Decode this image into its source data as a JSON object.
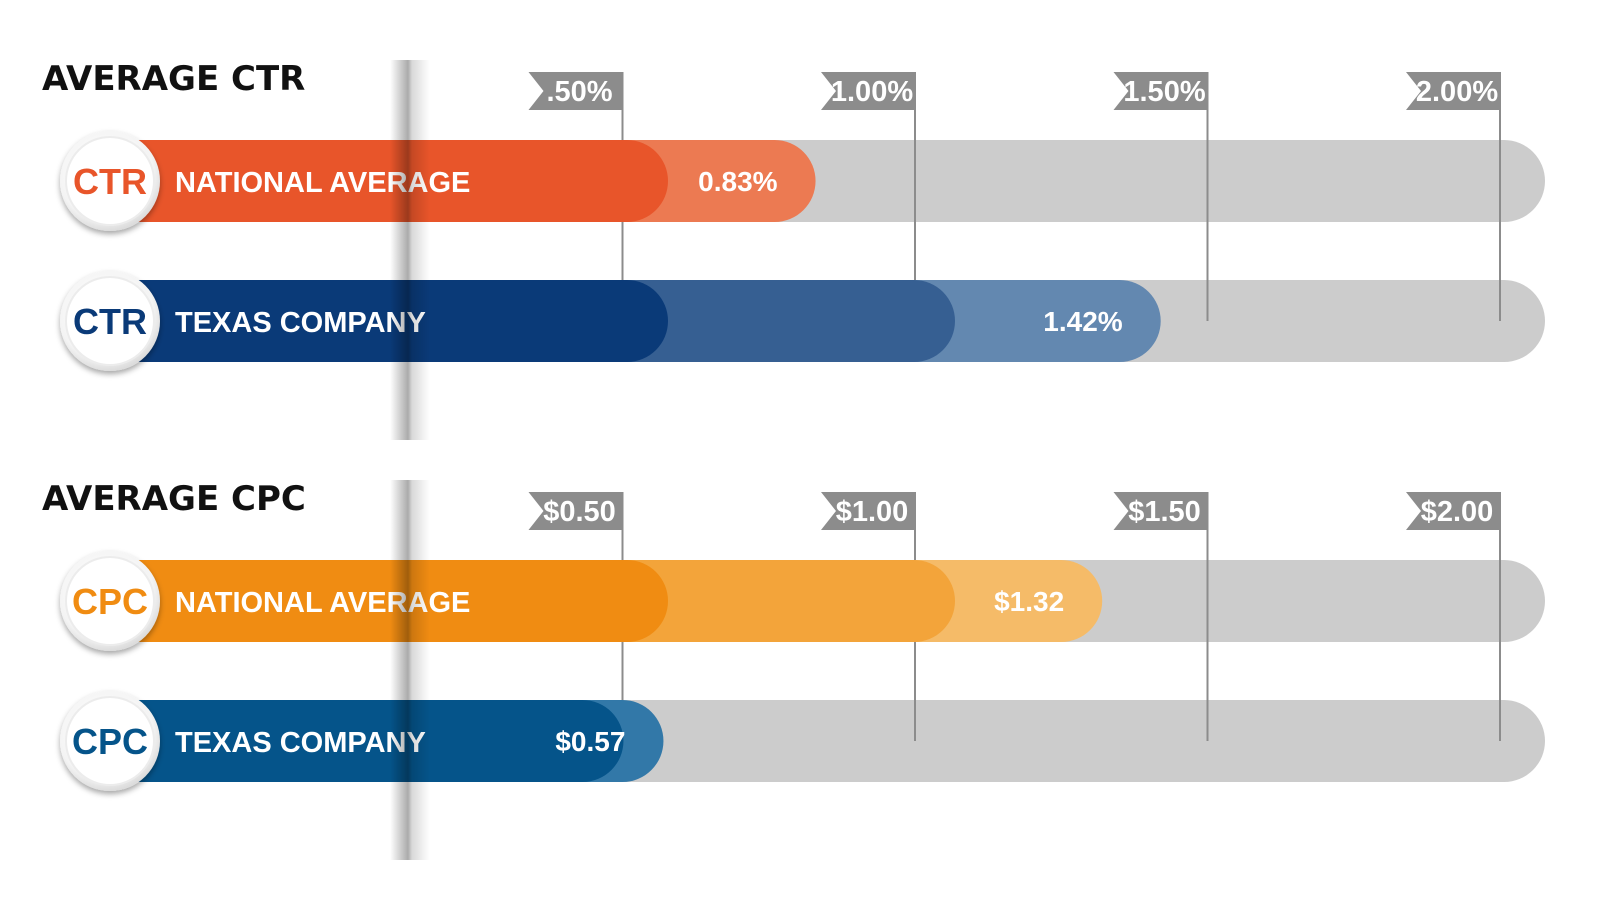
{
  "chart_data": [
    {
      "type": "bar",
      "title": "AVERAGE CTR",
      "ticks": [
        ".50%",
        "1.00%",
        "1.50%",
        "2.00%"
      ],
      "tick_values": [
        0.5,
        1.0,
        1.5,
        2.0
      ],
      "xlim": [
        0,
        2.0
      ],
      "series": [
        {
          "badge": "CTR",
          "label": "NATIONAL AVERAGE",
          "value": 0.83,
          "value_label": "0.83%",
          "colors": [
            "#e8552a",
            "#ec7a52"
          ],
          "badge_color": "#e8552a"
        },
        {
          "badge": "CTR",
          "label": "TEXAS COMPANY",
          "value": 1.42,
          "value_label": "1.42%",
          "colors": [
            "#0a3a78",
            "#365f92",
            "#6388b0"
          ],
          "badge_color": "#0a3a78"
        }
      ]
    },
    {
      "type": "bar",
      "title": "AVERAGE CPC",
      "ticks": [
        "$0.50",
        "$1.00",
        "$1.50",
        "$2.00"
      ],
      "tick_values": [
        0.5,
        1.0,
        1.5,
        2.0
      ],
      "xlim": [
        0,
        2.0
      ],
      "series": [
        {
          "badge": "CPC",
          "label": "NATIONAL AVERAGE",
          "value": 1.32,
          "value_label": "$1.32",
          "colors": [
            "#f08c12",
            "#f3a43a",
            "#f5bb68"
          ],
          "badge_color": "#f08c12"
        },
        {
          "badge": "CPC",
          "label": "TEXAS COMPANY",
          "value": 0.57,
          "value_label": "$0.57",
          "colors": [
            "#05548a",
            "#3278a8"
          ],
          "badge_color": "#05548a"
        }
      ]
    }
  ],
  "track_color": "#cccccc",
  "tick_color": "#8c8c8c"
}
